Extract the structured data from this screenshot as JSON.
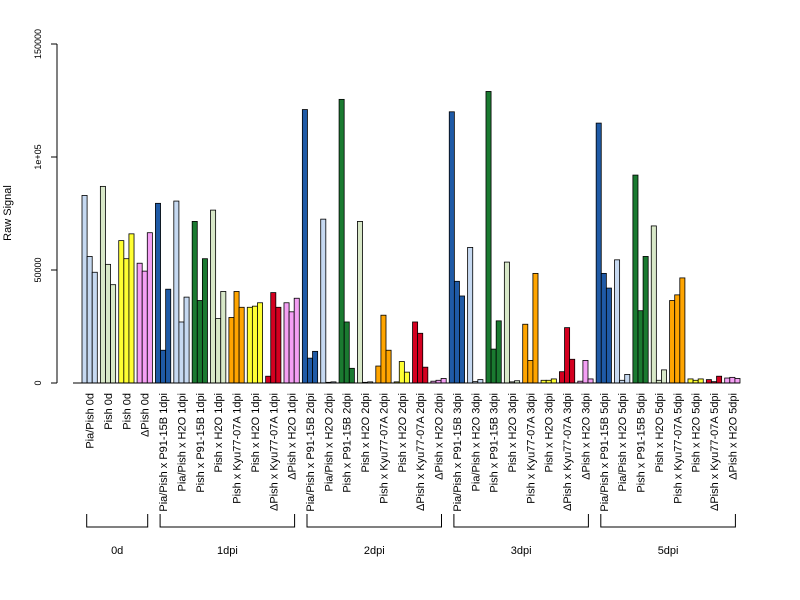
{
  "chart_data": {
    "type": "bar",
    "ylabel": "Raw Signal",
    "ylim": [
      0,
      150000
    ],
    "yticks": [
      {
        "value": 0,
        "label": "0"
      },
      {
        "value": 50000,
        "label": "50000"
      },
      {
        "value": 100000,
        "label": "1e+05"
      },
      {
        "value": 150000,
        "label": "150000"
      }
    ],
    "categories": [
      "Pia/Pish 0d",
      "Pish 0d",
      "Pish 0d",
      "ΔPish 0d",
      "Pia/Pish x P91-15B 1dpi",
      "Pia/Pish x H2O 1dpi",
      "Pish x P91-15B 1dpi",
      "Pish x H2O 1dpi",
      "Pish x Kyu77-07A 1dpi",
      "Pish x H2O 1dpi",
      "ΔPish x Kyu77-07A 1dpi",
      "ΔPish x H2O 1dpi",
      "Pia/Pish x P91-15B 2dpi",
      "Pia/Pish x H2O 2dpi",
      "Pish x P91-15B 2dpi",
      "Pish x H2O 2dpi",
      "Pish x Kyu77-07A 2dpi",
      "Pish x H2O 2dpi",
      "ΔPish x Kyu77-07A 2dpi",
      "ΔPish x H2O 2dpi",
      "Pia/Pish x P91-15B 3dpi",
      "Pia/Pish x H2O 3dpi",
      "Pish x P91-15B 3dpi",
      "Pish x H2O 3dpi",
      "Pish x Kyu77-07A 3dpi",
      "Pish x H2O 3dpi",
      "ΔPish x Kyu77-07A 3dpi",
      "ΔPish x H2O 3dpi",
      "Pia/Pish x P91-15B 5dpi",
      "Pia/Pish x H2O 5dpi",
      "Pish x P91-15B 5dpi",
      "Pish x H2O 5dpi",
      "Pish x Kyu77-07A 5dpi",
      "Pish x H2O 5dpi",
      "ΔPish x Kyu77-07A 5dpi",
      "ΔPish x H2O 5dpi"
    ],
    "bar_colors": [
      "#c6d9f1",
      "#d8e8c8",
      "#ffff33",
      "#f49ff4",
      "#1f5aa6",
      "#c6d9f1",
      "#1a7a30",
      "#d8e8c8",
      "#ffa500",
      "#ffff33",
      "#d40020",
      "#f49ff4",
      "#1f5aa6",
      "#c6d9f1",
      "#1a7a30",
      "#d8e8c8",
      "#ffa500",
      "#ffff33",
      "#d40020",
      "#f49ff4",
      "#1f5aa6",
      "#c6d9f1",
      "#1a7a30",
      "#d8e8c8",
      "#ffa500",
      "#ffff33",
      "#d40020",
      "#f49ff4",
      "#1f5aa6",
      "#c6d9f1",
      "#1a7a30",
      "#d8e8c8",
      "#ffa500",
      "#ffff33",
      "#d40020",
      "#f49ff4"
    ],
    "values": [
      [
        83000,
        56000,
        49000
      ],
      [
        87000,
        52500,
        43500
      ],
      [
        63000,
        55000,
        66000
      ],
      [
        53000,
        49500,
        66500
      ],
      [
        79500,
        14500,
        41500
      ],
      [
        80500,
        27000,
        38000
      ],
      [
        71500,
        36500,
        55000
      ],
      [
        76500,
        28500,
        40500
      ],
      [
        29000,
        40500,
        33500
      ],
      [
        33500,
        34000,
        35500
      ],
      [
        3000,
        40000,
        33500
      ],
      [
        35500,
        31500,
        37500
      ],
      [
        121000,
        11000,
        14000
      ],
      [
        72500,
        300,
        500
      ],
      [
        125500,
        27000,
        6500
      ],
      [
        71500,
        300,
        500
      ],
      [
        7500,
        30000,
        14500
      ],
      [
        500,
        9500,
        4800
      ],
      [
        27000,
        22000,
        7000
      ],
      [
        800,
        1200,
        2000
      ],
      [
        120000,
        45000,
        38500
      ],
      [
        60000,
        600,
        1500
      ],
      [
        129000,
        15000,
        27500
      ],
      [
        53500,
        500,
        1000
      ],
      [
        26000,
        10000,
        48500
      ],
      [
        1200,
        1200,
        1800
      ],
      [
        5000,
        24500,
        10500
      ],
      [
        800,
        10000,
        1800
      ],
      [
        115000,
        48500,
        42000
      ],
      [
        54500,
        1200,
        3800
      ],
      [
        92000,
        32000,
        56000
      ],
      [
        69500,
        1200,
        5800
      ],
      [
        36500,
        39000,
        46500
      ],
      [
        1800,
        1200,
        1800
      ],
      [
        1500,
        600,
        3000
      ],
      [
        2200,
        2500,
        2000
      ]
    ],
    "groups": [
      {
        "label": "0d",
        "start": 0,
        "end": 3
      },
      {
        "label": "1dpi",
        "start": 4,
        "end": 11
      },
      {
        "label": "2dpi",
        "start": 12,
        "end": 19
      },
      {
        "label": "3dpi",
        "start": 20,
        "end": 27
      },
      {
        "label": "5dpi",
        "start": 28,
        "end": 35
      }
    ],
    "grid": false,
    "legend": "none"
  }
}
